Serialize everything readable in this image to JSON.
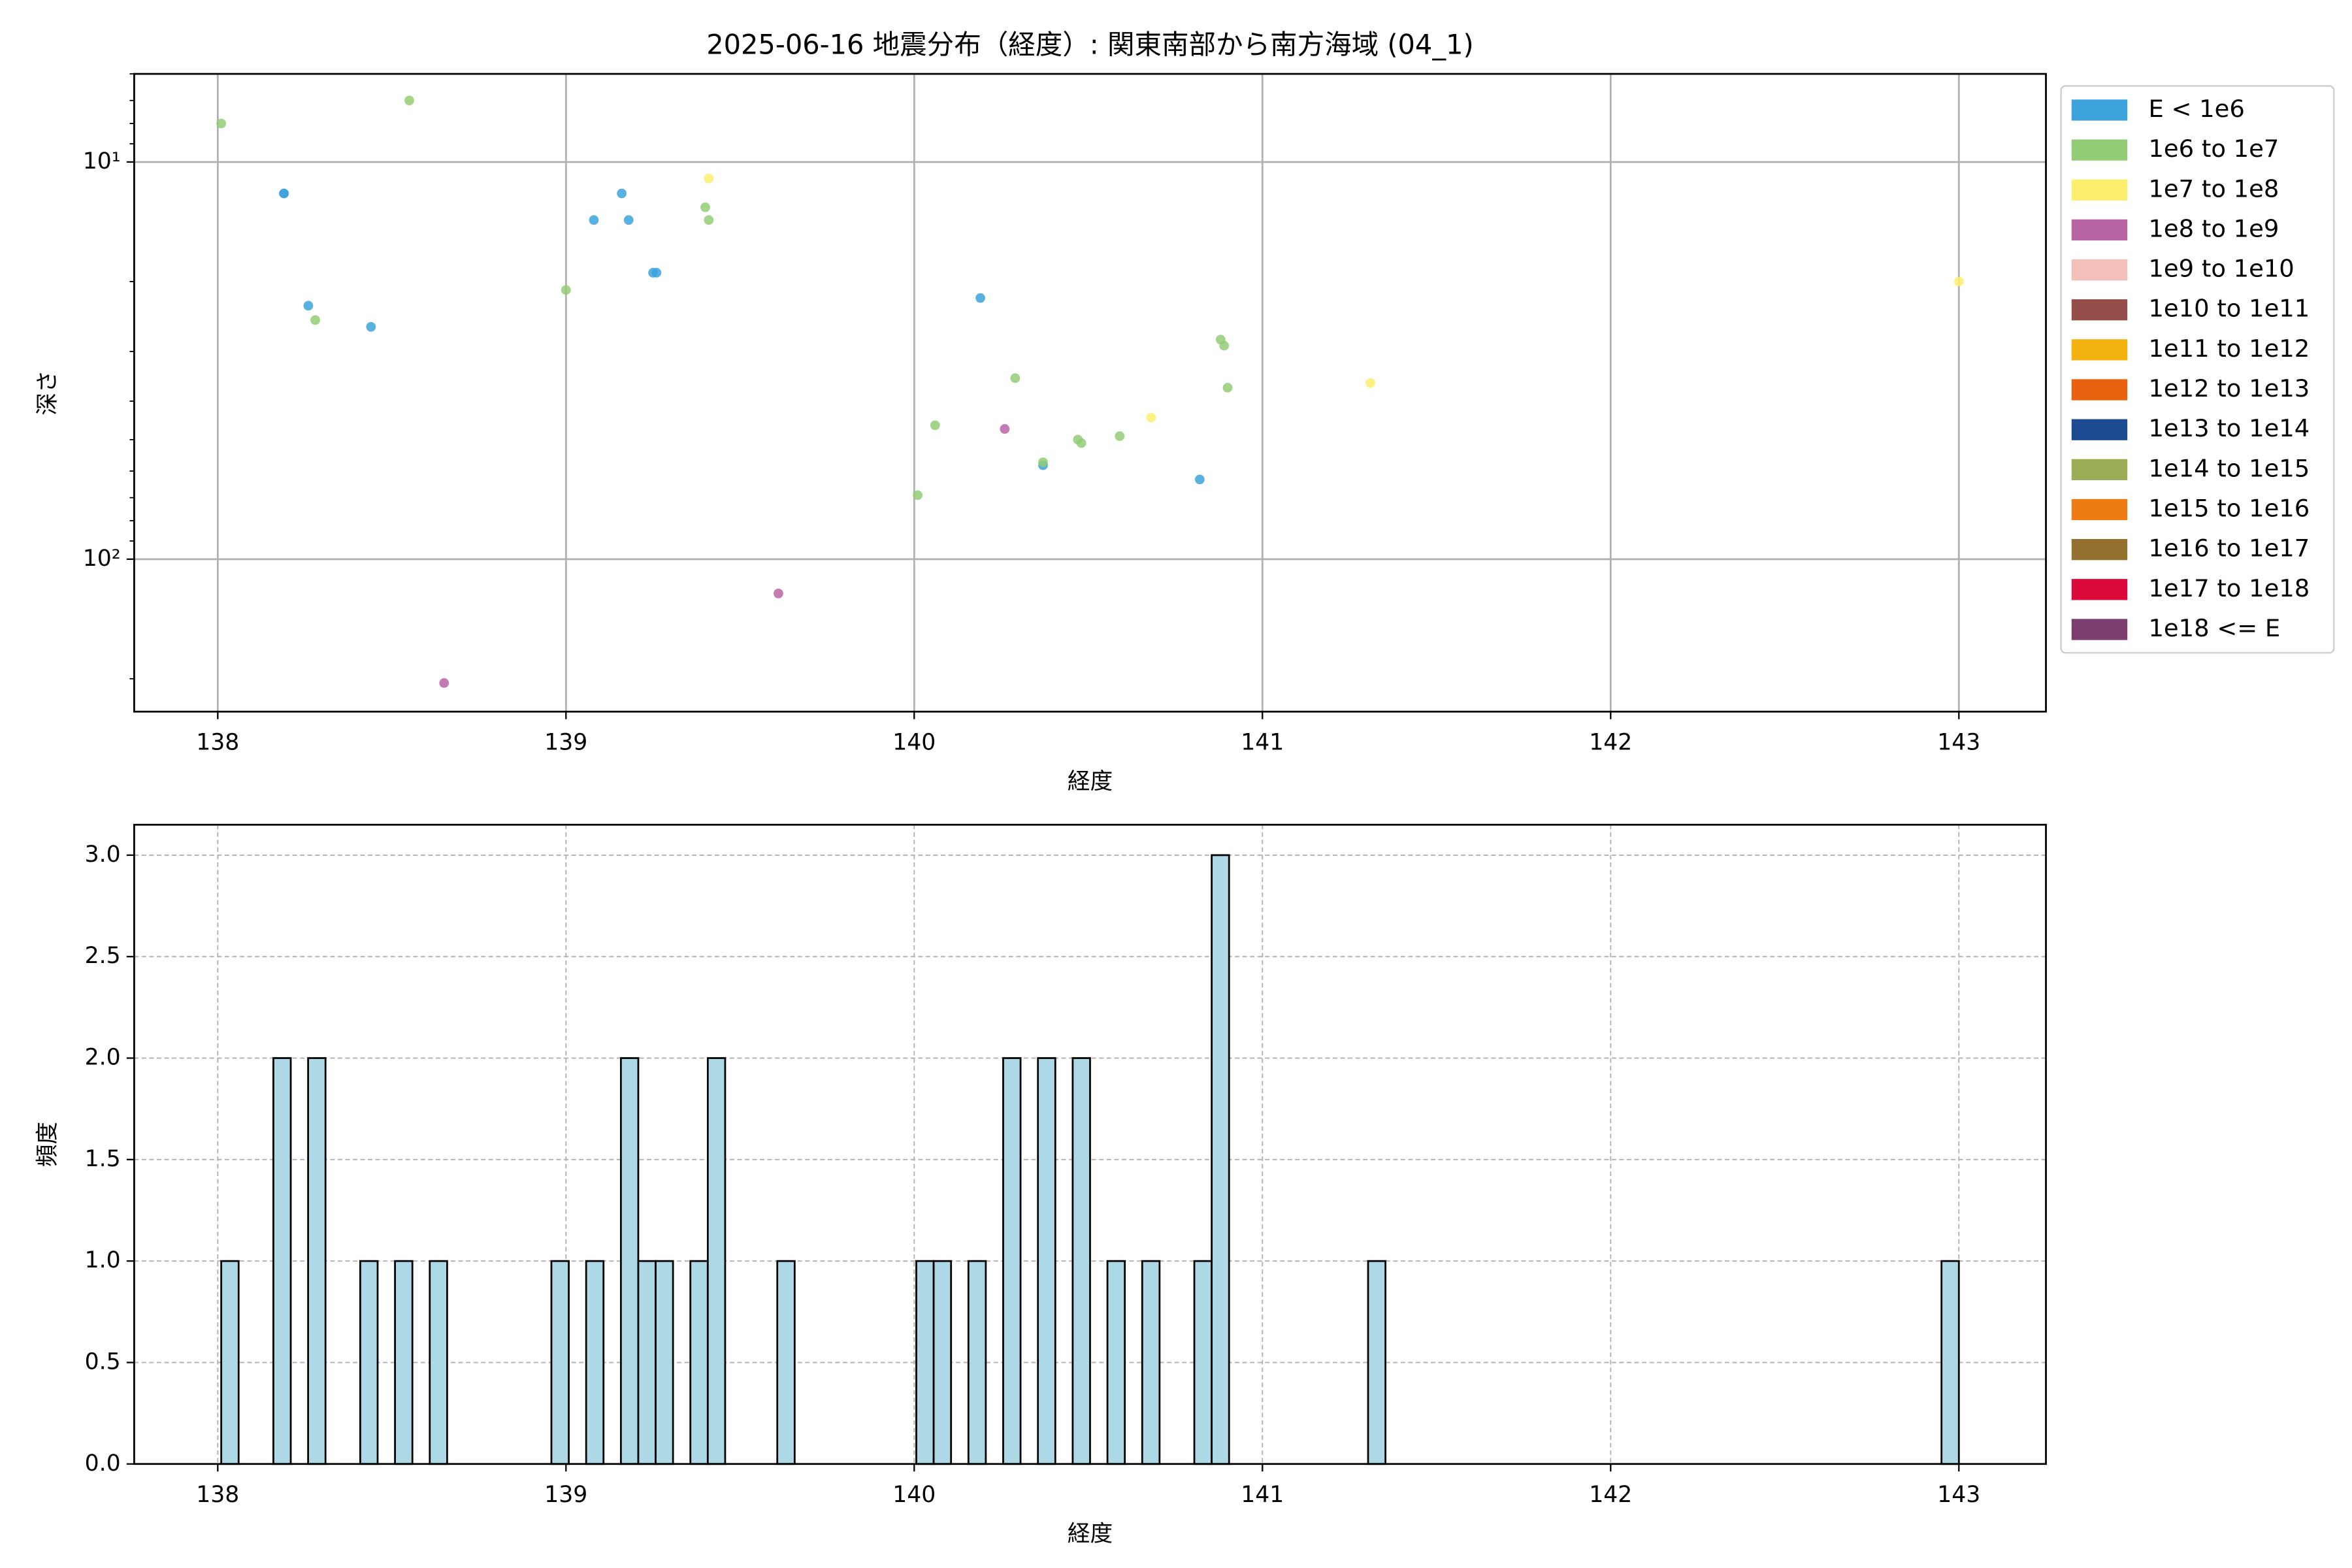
{
  "chart_data": [
    {
      "type": "scatter",
      "title": "2025-06-16 地震分布（経度）: 関東南部から南方海域 (04_1)",
      "x_label": "経度",
      "y_label": "深さ",
      "xlim": [
        137.76,
        143.25
      ],
      "xticks": [
        138,
        139,
        140,
        141,
        142,
        143
      ],
      "ylim": [
        6,
        242
      ],
      "log_y": true,
      "invert_y": true,
      "yticks": [
        {
          "value": 10,
          "label": "10¹"
        },
        {
          "value": 100,
          "label": "10²"
        }
      ],
      "yticks_minor": [
        6,
        7,
        8,
        9,
        20,
        30,
        40,
        50,
        60,
        70,
        80,
        90,
        200
      ],
      "grid": true,
      "legend": "outside upper right",
      "series": [
        {
          "name": "E < 1e6",
          "color": "#3ca3dd",
          "x": [
            138.19,
            138.19,
            138.26,
            138.44,
            139.08,
            139.16,
            139.18,
            139.25,
            139.26,
            140.19,
            140.37,
            140.82
          ],
          "y": [
            12,
            12,
            23,
            26,
            14,
            12,
            14,
            19,
            19,
            22,
            58,
            63
          ]
        },
        {
          "name": "1e6 to 1e7",
          "color": "#93cc76",
          "x": [
            138.01,
            138.55,
            138.28,
            139.0,
            139.4,
            139.41,
            140.01,
            140.06,
            140.29,
            140.37,
            140.47,
            140.48,
            140.59,
            140.88,
            140.89,
            140.9
          ],
          "y": [
            8,
            7,
            25,
            21,
            13,
            14,
            69,
            46,
            35,
            57,
            50,
            51,
            49,
            28,
            29,
            37
          ]
        },
        {
          "name": "1e7 to 1e8",
          "color": "#fdee6e",
          "x": [
            139.41,
            140.68,
            141.31,
            143.0
          ],
          "y": [
            11,
            44,
            36,
            20
          ]
        },
        {
          "name": "1e8 to 1e9",
          "color": "#b964a5",
          "x": [
            138.65,
            139.61,
            140.26
          ],
          "y": [
            205,
            122,
            47
          ]
        },
        {
          "name": "1e9 to 1e10",
          "color": "#f4bfb9",
          "x": [],
          "y": []
        },
        {
          "name": "1e10 to 1e11",
          "color": "#954f4a",
          "x": [],
          "y": []
        },
        {
          "name": "1e11 to 1e12",
          "color": "#f5b30f",
          "x": [],
          "y": []
        },
        {
          "name": "1e12 to 1e13",
          "color": "#e8610e",
          "x": [],
          "y": []
        },
        {
          "name": "1e13 to 1e14",
          "color": "#1d4b91",
          "x": [],
          "y": []
        },
        {
          "name": "1e14 to 1e15",
          "color": "#9aad55",
          "x": [],
          "y": []
        },
        {
          "name": "1e15 to 1e16",
          "color": "#ef7c12",
          "x": [],
          "y": []
        },
        {
          "name": "1e16 to 1e17",
          "color": "#93702e",
          "x": [],
          "y": []
        },
        {
          "name": "1e17 to 1e18",
          "color": "#dc0a3a",
          "x": [],
          "y": []
        },
        {
          "name": "1e18 <= E",
          "color": "#7b3e6e",
          "x": [],
          "y": []
        }
      ]
    },
    {
      "type": "histogram",
      "x_label": "経度",
      "y_label": "頻度",
      "xlim": [
        137.76,
        143.25
      ],
      "xticks": [
        138,
        139,
        140,
        141,
        142,
        143
      ],
      "ylim": [
        0,
        3.15
      ],
      "yticks": [
        {
          "value": 0,
          "label": "0.0"
        },
        {
          "value": 0.5,
          "label": "0.5"
        },
        {
          "value": 1,
          "label": "1.0"
        },
        {
          "value": 1.5,
          "label": "1.5"
        },
        {
          "value": 2,
          "label": "2.0"
        },
        {
          "value": 2.5,
          "label": "2.5"
        },
        {
          "value": 3,
          "label": "3.0"
        }
      ],
      "grid": true,
      "color": "#add8e6",
      "edgecolor": "#000000",
      "bins": [
        138.01,
        138.0599,
        138.1098,
        138.1597,
        138.2096,
        138.2595,
        138.3094,
        138.3593,
        138.4092,
        138.4591,
        138.509,
        138.5589,
        138.6088,
        138.6587,
        138.7086,
        138.7585,
        138.8084,
        138.8583,
        138.9082,
        138.9581,
        139.008,
        139.0579,
        139.1078,
        139.1577,
        139.2076,
        139.2575,
        139.3074,
        139.3573,
        139.4072,
        139.4571,
        139.507,
        139.5569,
        139.6068,
        139.6567,
        139.7066,
        139.7565,
        139.8064,
        139.8563,
        139.9062,
        139.9561,
        140.006,
        140.0559,
        140.1058,
        140.1557,
        140.2056,
        140.2555,
        140.3054,
        140.3553,
        140.4052,
        140.4551,
        140.505,
        140.5549,
        140.6048,
        140.6547,
        140.7046,
        140.7545,
        140.8044,
        140.8543,
        140.9042,
        140.9541,
        141.004,
        141.0539,
        141.1038,
        141.1537,
        141.2036,
        141.2535,
        141.3034,
        141.3533,
        141.4032,
        141.4531,
        141.503,
        141.5529,
        141.6028,
        141.6527,
        141.7026,
        141.7525,
        141.8024,
        141.8523,
        141.9022,
        141.9521,
        142.002,
        142.0519,
        142.1018,
        142.1517,
        142.2016,
        142.2515,
        142.3014,
        142.3513,
        142.4012,
        142.4511,
        142.501,
        142.5509,
        142.6008,
        142.6507,
        142.7006,
        142.7505,
        142.8004,
        142.8503,
        142.9002,
        142.9501,
        143.0
      ],
      "counts": [
        1,
        0,
        0,
        2,
        0,
        2,
        0,
        0,
        1,
        0,
        1,
        0,
        1,
        0,
        0,
        0,
        0,
        0,
        0,
        1,
        0,
        1,
        0,
        2,
        1,
        1,
        0,
        1,
        2,
        0,
        0,
        0,
        1,
        0,
        0,
        0,
        0,
        0,
        0,
        0,
        1,
        1,
        0,
        1,
        0,
        2,
        0,
        2,
        0,
        2,
        0,
        1,
        0,
        1,
        0,
        0,
        1,
        3,
        0,
        0,
        0,
        0,
        0,
        0,
        0,
        0,
        1,
        0,
        0,
        0,
        0,
        0,
        0,
        0,
        0,
        0,
        0,
        0,
        0,
        0,
        0,
        0,
        0,
        0,
        0,
        0,
        0,
        0,
        0,
        0,
        0,
        0,
        0,
        0,
        0,
        0,
        0,
        0,
        0,
        1
      ]
    }
  ]
}
